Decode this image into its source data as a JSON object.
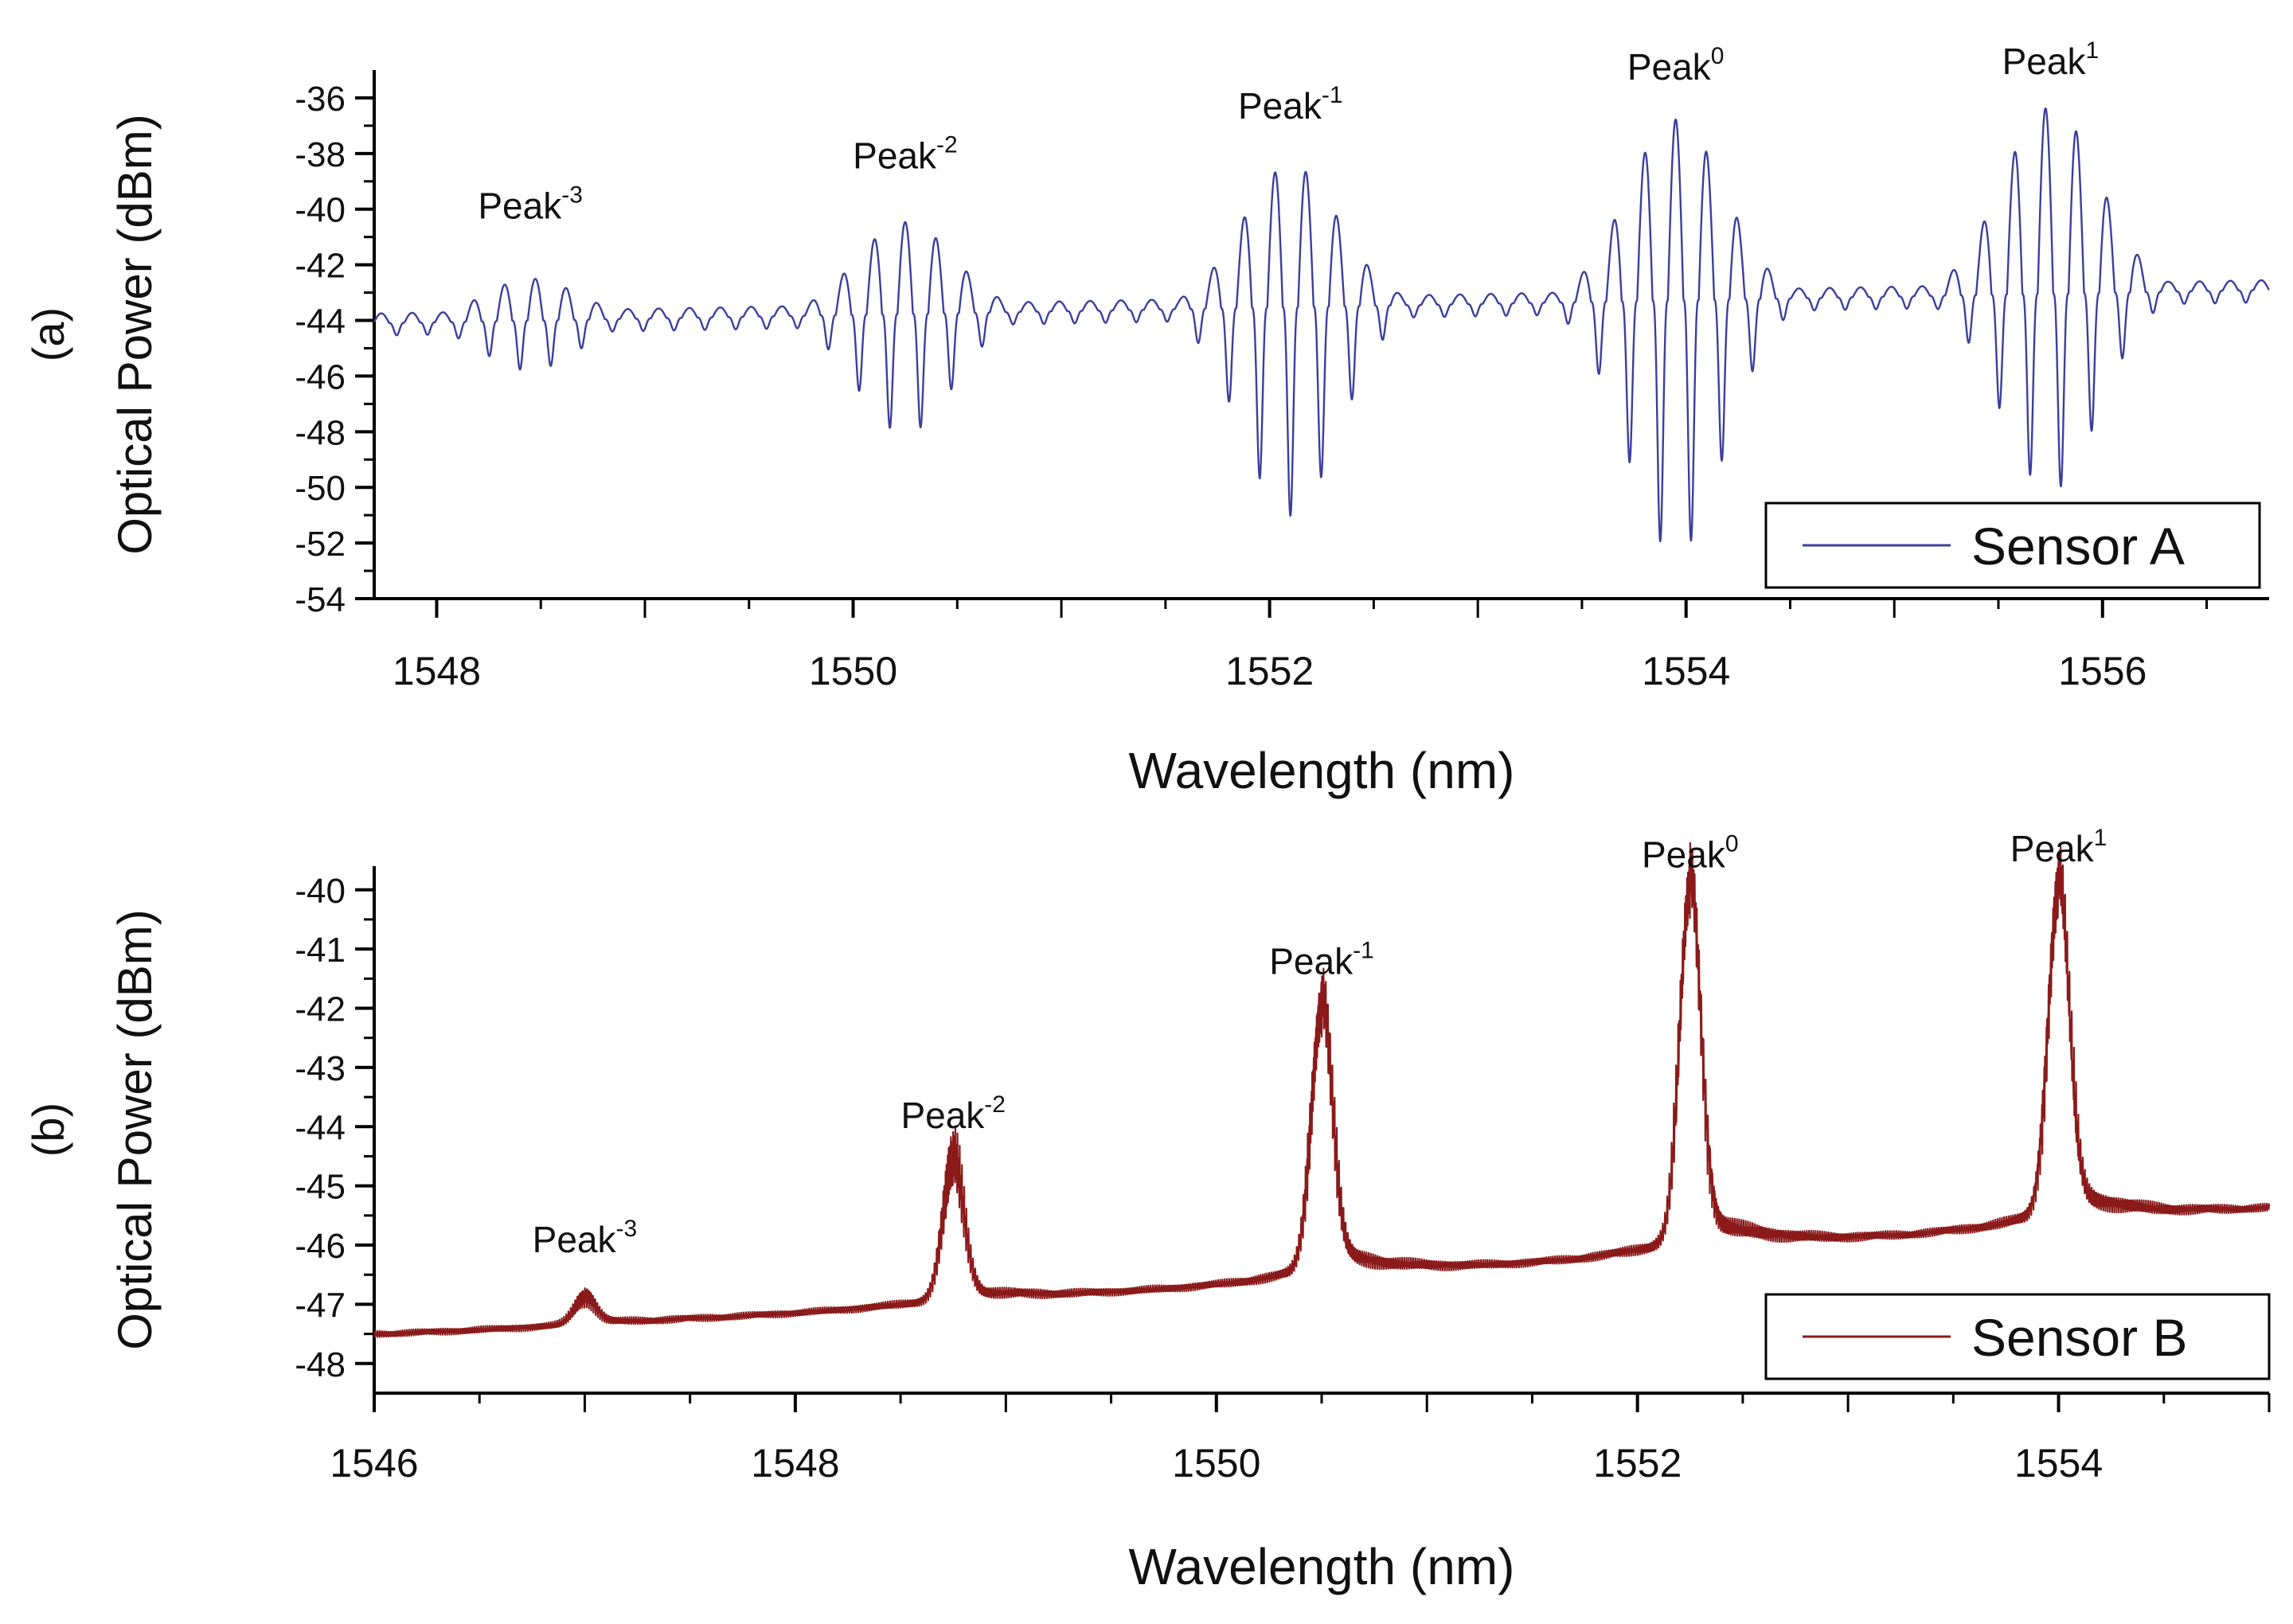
{
  "chart_data": [
    {
      "panel_label": "(a)",
      "type": "line",
      "xlabel": "Wavelength (nm)",
      "ylabel": "Optical Power (dBm)",
      "xlim": [
        1547.7,
        1556.8
      ],
      "ylim": [
        -54,
        -35
      ],
      "x_ticks": [
        1548,
        1550,
        1552,
        1554,
        1556
      ],
      "y_ticks": [
        -54,
        -52,
        -50,
        -48,
        -46,
        -44,
        -42,
        -40,
        -38,
        -36
      ],
      "grid": false,
      "legend_position": "bottom-right",
      "series": [
        {
          "name": "Sensor A",
          "color": "#3a3f9e",
          "baseline": -43.5,
          "peaks": [
            {
              "label": "Peak",
              "sup": "-3",
              "x": 1548.45,
              "max": -42.0,
              "min": -45.3
            },
            {
              "label": "Peak",
              "sup": "-2",
              "x": 1550.25,
              "max": -40.2,
              "min": -47.8
            },
            {
              "label": "Peak",
              "sup": "-1",
              "x": 1552.1,
              "max": -38.4,
              "min": -51.0
            },
            {
              "label": "Peak",
              "sup": "0",
              "x": 1553.95,
              "max": -37.0,
              "min": -52.6
            },
            {
              "label": "Peak",
              "sup": "1",
              "x": 1555.75,
              "max": -36.8,
              "min": -50.6
            }
          ]
        }
      ]
    },
    {
      "panel_label": "(b)",
      "type": "line",
      "xlabel": "Wavelength (nm)",
      "ylabel": "Optical Power (dBm)",
      "xlim": [
        1546,
        1555
      ],
      "ylim": [
        -48.5,
        -39.6
      ],
      "x_ticks": [
        1546,
        1548,
        1550,
        1552,
        1554
      ],
      "y_ticks": [
        -48,
        -47,
        -46,
        -45,
        -44,
        -43,
        -42,
        -41,
        -40
      ],
      "grid": false,
      "legend_position": "bottom-right",
      "series": [
        {
          "name": "Sensor B",
          "color": "#8b1a1a",
          "baseline_start": -47.5,
          "baseline_end": -45.4,
          "peaks": [
            {
              "label": "Peak",
              "sup": "-3",
              "x": 1547.0,
              "max": -46.9
            },
            {
              "label": "Peak",
              "sup": "-2",
              "x": 1548.75,
              "max": -44.8
            },
            {
              "label": "Peak",
              "sup": "-1",
              "x": 1550.5,
              "max": -42.2
            },
            {
              "label": "Peak",
              "sup": "0",
              "x": 1552.25,
              "max": -40.4
            },
            {
              "label": "Peak",
              "sup": "1",
              "x": 1554.0,
              "max": -40.3
            }
          ]
        }
      ]
    }
  ]
}
